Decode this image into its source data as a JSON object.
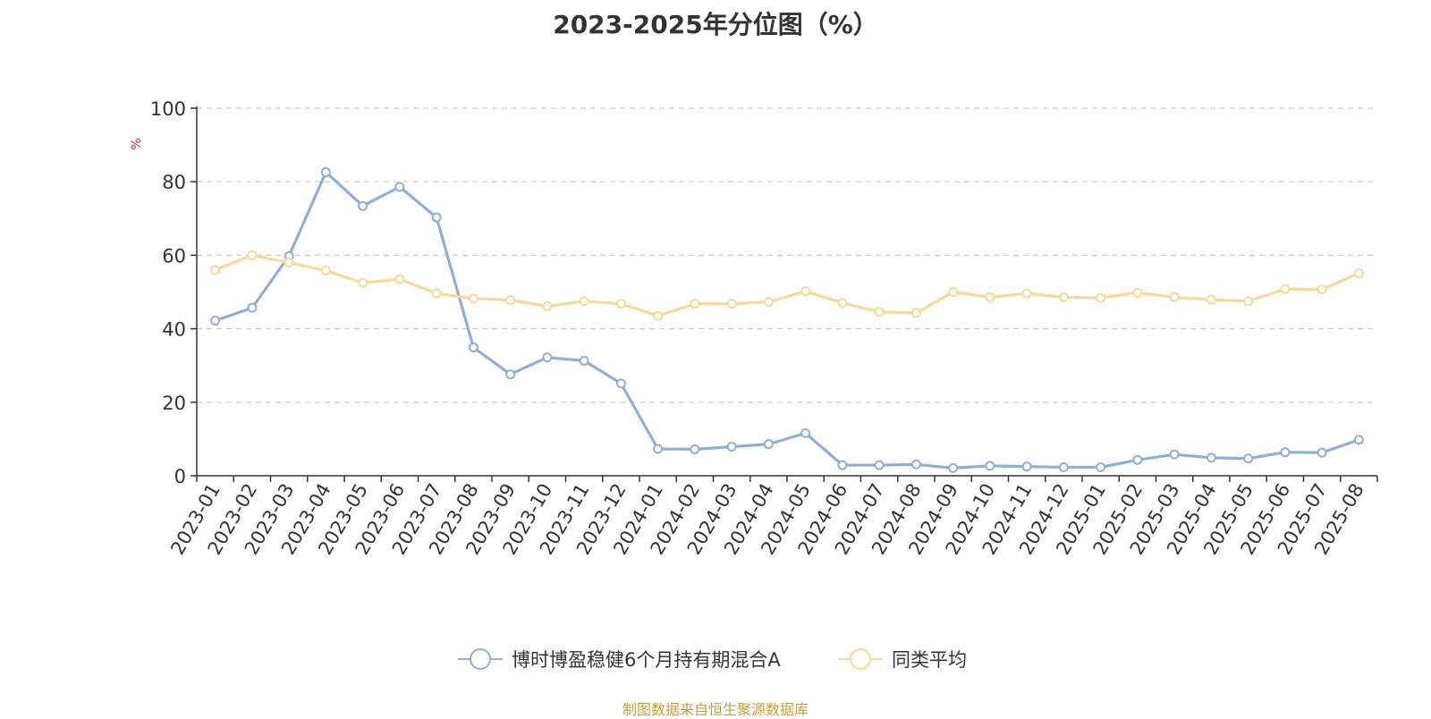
{
  "chart_data": {
    "type": "line",
    "title": "2023-2025年分位图（%）",
    "ylabel": "%",
    "xlabel": "",
    "ylim": [
      0,
      100
    ],
    "y_ticks": [
      "0",
      "20",
      "40",
      "60",
      "80",
      "100"
    ],
    "grid": true,
    "legend_position": "bottom",
    "categories": [
      "2023-01",
      "2023-02",
      "2023-03",
      "2023-04",
      "2023-05",
      "2023-06",
      "2023-07",
      "2023-08",
      "2023-09",
      "2023-10",
      "2023-11",
      "2023-12",
      "2024-01",
      "2024-02",
      "2024-03",
      "2024-04",
      "2024-05",
      "2024-06",
      "2024-07",
      "2024-08",
      "2024-09",
      "2024-10",
      "2024-11",
      "2024-12",
      "2025-01",
      "2025-02",
      "2025-03",
      "2025-04",
      "2025-05",
      "2025-06",
      "2025-07",
      "2025-08"
    ],
    "series": [
      {
        "name": "博时博盈稳健6个月持有期混合A",
        "color": "#8eb0d8",
        "values": [
          42.2,
          45.7,
          59.8,
          82.6,
          73.4,
          78.6,
          70.3,
          34.9,
          27.6,
          32.2,
          31.3,
          25.1,
          7.3,
          7.2,
          7.9,
          8.6,
          11.6,
          2.9,
          2.9,
          3.1,
          2.1,
          2.7,
          2.5,
          2.3,
          2.3,
          4.3,
          5.8,
          4.9,
          4.7,
          6.4,
          6.3,
          9.8
        ]
      },
      {
        "name": "同类平均",
        "color": "#fbd898",
        "values": [
          56.0,
          60.0,
          58.0,
          55.8,
          52.5,
          53.5,
          49.6,
          48.2,
          47.8,
          46.1,
          47.5,
          46.8,
          43.5,
          46.8,
          46.8,
          47.3,
          50.2,
          47.0,
          44.6,
          44.3,
          50.0,
          48.6,
          49.6,
          48.6,
          48.4,
          49.8,
          48.6,
          47.9,
          47.5,
          50.8,
          50.7,
          55.1
        ]
      }
    ]
  },
  "source_note": "制图数据来自恒生聚源数据库"
}
